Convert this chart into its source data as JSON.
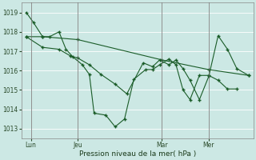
{
  "xlabel": "Pression niveau de la mer( hPa )",
  "bg_color": "#cce8e4",
  "grid_color": "#b8d8d4",
  "line_color": "#1a5c28",
  "ylim": [
    1012.5,
    1019.5
  ],
  "yticks": [
    1013,
    1014,
    1015,
    1016,
    1017,
    1018,
    1019
  ],
  "xtick_labels": [
    "Lun",
    "Jeu",
    "Mar",
    "Mer"
  ],
  "xtick_positions": [
    2,
    22,
    58,
    78
  ],
  "vline_positions": [
    2,
    22,
    58,
    78
  ],
  "series1_x": [
    0,
    3,
    7,
    10,
    14,
    17,
    20,
    24,
    27,
    29,
    34,
    38,
    42,
    46,
    51,
    54,
    57,
    61,
    64,
    67,
    70,
    74,
    78,
    82,
    86,
    90
  ],
  "series1_y": [
    1019.0,
    1018.5,
    1017.75,
    1017.75,
    1018.0,
    1017.1,
    1016.7,
    1016.3,
    1015.8,
    1013.8,
    1013.7,
    1013.1,
    1013.5,
    1015.55,
    1016.05,
    1016.05,
    1016.3,
    1016.6,
    1016.3,
    1015.0,
    1014.5,
    1015.75,
    1015.75,
    1015.5,
    1015.05,
    1015.05
  ],
  "series2_x": [
    0,
    7,
    22,
    58,
    78,
    95
  ],
  "series2_y": [
    1017.75,
    1017.75,
    1017.6,
    1016.55,
    1016.05,
    1015.75
  ],
  "series3_x": [
    0,
    7,
    14,
    19,
    22,
    27,
    32,
    38,
    43,
    50,
    54,
    57,
    61,
    64,
    67,
    70,
    74,
    78,
    82,
    86,
    90,
    95
  ],
  "series3_y": [
    1017.75,
    1017.2,
    1017.1,
    1016.75,
    1016.65,
    1016.3,
    1015.8,
    1015.3,
    1014.8,
    1016.4,
    1016.2,
    1016.55,
    1016.3,
    1016.55,
    1016.1,
    1015.5,
    1014.5,
    1015.7,
    1017.8,
    1017.1,
    1016.1,
    1015.75
  ],
  "xlim": [
    -2,
    97
  ]
}
